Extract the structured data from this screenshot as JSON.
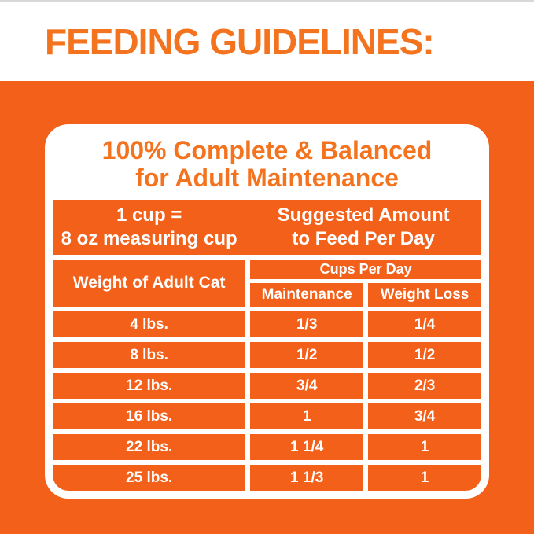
{
  "page": {
    "title": "FEEDING GUIDELINES:",
    "colors": {
      "background_orange": "#F2601A",
      "headline_orange": "#F4731E",
      "cell_text_white": "#FFFFFF",
      "card_white": "#FFFFFF"
    }
  },
  "card": {
    "title_line1": "100% Complete & Balanced",
    "title_line2": "for Adult Maintenance",
    "info_row": {
      "left_line1": "1 cup =",
      "left_line2": "8 oz measuring cup",
      "right_line1": "Suggested Amount",
      "right_line2": "to Feed Per Day"
    },
    "table": {
      "weight_header": "Weight of Adult Cat",
      "cups_header": "Cups Per Day",
      "col_maintenance": "Maintenance",
      "col_weight_loss": "Weight Loss",
      "rows": [
        {
          "weight": "4 lbs.",
          "maintenance": "1/3",
          "weight_loss": "1/4"
        },
        {
          "weight": "8 lbs.",
          "maintenance": "1/2",
          "weight_loss": "1/2"
        },
        {
          "weight": "12 lbs.",
          "maintenance": "3/4",
          "weight_loss": "2/3"
        },
        {
          "weight": "16 lbs.",
          "maintenance": "1",
          "weight_loss": "3/4"
        },
        {
          "weight": "22 lbs.",
          "maintenance": "1 1/4",
          "weight_loss": "1"
        },
        {
          "weight": "25 lbs.",
          "maintenance": "1 1/3",
          "weight_loss": "1"
        }
      ]
    }
  }
}
